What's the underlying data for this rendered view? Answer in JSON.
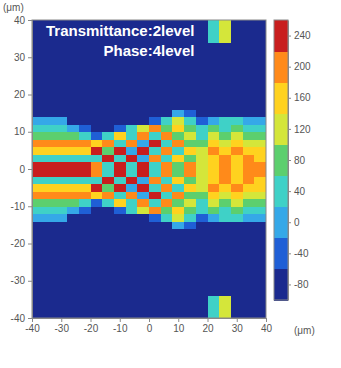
{
  "chart_data": {
    "type": "heatmap",
    "annotations": [
      "Transmittance:2level",
      "Phase:4level"
    ],
    "x_label": "(μm)",
    "y_label": "(μm)",
    "xlim": [
      -40,
      40
    ],
    "xticks": [
      -40,
      -30,
      -20,
      -10,
      0,
      10,
      20,
      30,
      40
    ],
    "ylim": [
      -40,
      40
    ],
    "yticks": [
      -40,
      -30,
      -20,
      -10,
      0,
      10,
      20,
      30,
      40
    ],
    "x_edges": [
      -40,
      -36,
      -32,
      -28,
      -24,
      -20,
      -16,
      -12,
      -8,
      -4,
      0,
      4,
      8,
      12,
      16,
      20,
      24,
      28,
      32,
      36,
      40
    ],
    "y_edges": [
      -40,
      -34,
      -16,
      -14,
      -12,
      -10,
      -8,
      -6,
      -4,
      -2,
      0,
      2,
      4,
      6,
      8,
      10,
      12,
      14,
      16,
      34,
      40
    ],
    "cells": [
      [
        -80,
        -80,
        -80,
        -80,
        -80,
        -80,
        -80,
        -80,
        -80,
        -80,
        -80,
        -80,
        -80,
        -80,
        -80,
        40,
        120,
        -80,
        -80,
        -80
      ],
      [
        -80,
        -80,
        -80,
        -80,
        -80,
        -80,
        -80,
        -80,
        -80,
        -80,
        -80,
        -80,
        -80,
        -80,
        -80,
        -80,
        -80,
        -80,
        -80,
        -80
      ],
      [
        -80,
        -80,
        -80,
        -80,
        -80,
        -80,
        -80,
        -80,
        -80,
        -80,
        -80,
        -80,
        0,
        -40,
        -80,
        -80,
        -80,
        -80,
        -80,
        -80
      ],
      [
        0,
        0,
        0,
        -80,
        -80,
        -80,
        -80,
        -80,
        -80,
        -80,
        -40,
        40,
        120,
        40,
        -40,
        0,
        40,
        40,
        0,
        0
      ],
      [
        40,
        40,
        40,
        0,
        -40,
        -80,
        -80,
        -40,
        40,
        120,
        200,
        80,
        160,
        80,
        40,
        80,
        40,
        80,
        40,
        40
      ],
      [
        80,
        80,
        80,
        80,
        40,
        -40,
        40,
        160,
        40,
        200,
        40,
        200,
        80,
        120,
        40,
        120,
        80,
        120,
        80,
        80
      ],
      [
        200,
        200,
        200,
        200,
        200,
        160,
        200,
        40,
        200,
        0,
        240,
        40,
        200,
        80,
        80,
        160,
        120,
        160,
        120,
        120
      ],
      [
        160,
        160,
        160,
        160,
        160,
        240,
        80,
        240,
        0,
        240,
        40,
        200,
        40,
        160,
        120,
        200,
        160,
        200,
        160,
        160
      ],
      [
        40,
        40,
        40,
        40,
        40,
        40,
        240,
        40,
        240,
        0,
        200,
        40,
        160,
        80,
        120,
        160,
        200,
        160,
        200,
        160
      ],
      [
        240,
        240,
        240,
        240,
        240,
        200,
        40,
        240,
        40,
        240,
        40,
        200,
        80,
        200,
        120,
        160,
        200,
        160,
        200,
        200
      ],
      [
        240,
        240,
        240,
        240,
        240,
        200,
        40,
        240,
        40,
        240,
        40,
        200,
        80,
        200,
        120,
        160,
        200,
        160,
        200,
        200
      ],
      [
        40,
        40,
        40,
        40,
        40,
        40,
        240,
        40,
        240,
        0,
        200,
        40,
        160,
        80,
        120,
        160,
        200,
        160,
        200,
        160
      ],
      [
        160,
        160,
        160,
        160,
        160,
        240,
        80,
        240,
        0,
        240,
        40,
        200,
        40,
        160,
        120,
        200,
        160,
        200,
        160,
        160
      ],
      [
        200,
        200,
        200,
        200,
        200,
        160,
        200,
        40,
        200,
        0,
        240,
        40,
        200,
        80,
        80,
        160,
        120,
        160,
        120,
        120
      ],
      [
        80,
        80,
        80,
        80,
        40,
        -40,
        40,
        160,
        40,
        200,
        40,
        200,
        80,
        120,
        40,
        120,
        80,
        120,
        80,
        80
      ],
      [
        40,
        40,
        40,
        0,
        -40,
        -80,
        -80,
        -40,
        40,
        120,
        200,
        80,
        160,
        80,
        40,
        80,
        40,
        80,
        40,
        40
      ],
      [
        0,
        0,
        0,
        -80,
        -80,
        -80,
        -80,
        -80,
        -80,
        -80,
        -40,
        40,
        120,
        40,
        -40,
        0,
        40,
        40,
        0,
        0
      ],
      [
        -80,
        -80,
        -80,
        -80,
        -80,
        -80,
        -80,
        -80,
        -80,
        -80,
        -80,
        -80,
        0,
        -40,
        -80,
        -80,
        -80,
        -80,
        -80,
        -80
      ],
      [
        -80,
        -80,
        -80,
        -80,
        -80,
        -80,
        -80,
        -80,
        -80,
        -80,
        -80,
        -80,
        -80,
        -80,
        -80,
        -80,
        -80,
        -80,
        -80,
        -80
      ],
      [
        -80,
        -80,
        -80,
        -80,
        -80,
        -80,
        -80,
        -80,
        -80,
        -80,
        -80,
        -80,
        -80,
        -80,
        -80,
        40,
        120,
        -80,
        -80,
        -80
      ]
    ],
    "colorbar_range": [
      -100,
      260
    ],
    "colorbar_ticks": [
      -80,
      -40,
      0,
      40,
      80,
      120,
      160,
      200,
      240
    ]
  }
}
